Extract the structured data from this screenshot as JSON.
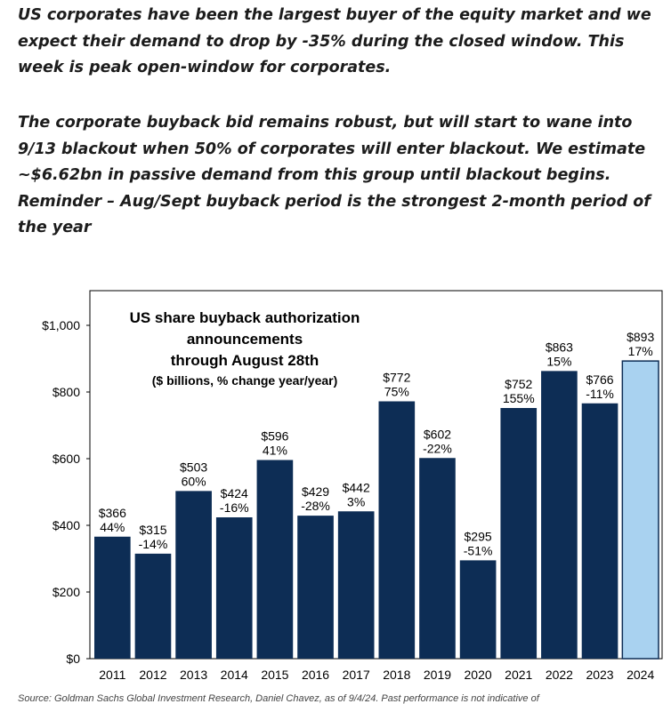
{
  "paragraphs": [
    "US corporates have been the largest buyer of the equity market and we expect their demand to drop by -35% during the closed window. This week is peak open-window for corporates.",
    "The corporate buyback bid remains robust, but will start to wane into 9/13 blackout when 50% of corporates will enter blackout. We estimate ~$6.62bn in passive demand from this group until blackout begins. Reminder – Aug/Sept buyback period is the strongest 2-month period of the year"
  ],
  "source": "Source: Goldman Sachs Global Investment Research, Daniel Chavez, as of 9/4/24. Past performance is not indicative of",
  "chart_data": {
    "type": "bar",
    "title_lines": [
      "US share buyback authorization",
      "announcements",
      "through August 28th",
      "($ billions, % change year/year)"
    ],
    "categories": [
      "2011",
      "2012",
      "2013",
      "2014",
      "2015",
      "2016",
      "2017",
      "2018",
      "2019",
      "2020",
      "2021",
      "2022",
      "2023",
      "2024"
    ],
    "values": [
      366,
      315,
      503,
      424,
      596,
      429,
      442,
      772,
      602,
      295,
      752,
      863,
      766,
      893
    ],
    "value_labels": [
      "$366",
      "$315",
      "$503",
      "$424",
      "$596",
      "$429",
      "$442",
      "$772",
      "$602",
      "$295",
      "$752",
      "$863",
      "$766",
      "$893"
    ],
    "pct_labels": [
      "44%",
      "-14%",
      "60%",
      "-16%",
      "41%",
      "-28%",
      "3%",
      "75%",
      "-22%",
      "-51%",
      "155%",
      "15%",
      "-11%",
      "17%"
    ],
    "yticks": [
      "$0",
      "$200",
      "$400",
      "$600",
      "$800",
      "$1,000"
    ],
    "ytick_values": [
      0,
      200,
      400,
      600,
      800,
      1000
    ],
    "ylim": [
      0,
      1000
    ],
    "grid": false,
    "colors": {
      "bar": "#0d2d55",
      "highlight": "#a9d2f0",
      "highlight_edge": "#0d2d55",
      "axis": "#000000"
    },
    "highlight_index": 13
  }
}
